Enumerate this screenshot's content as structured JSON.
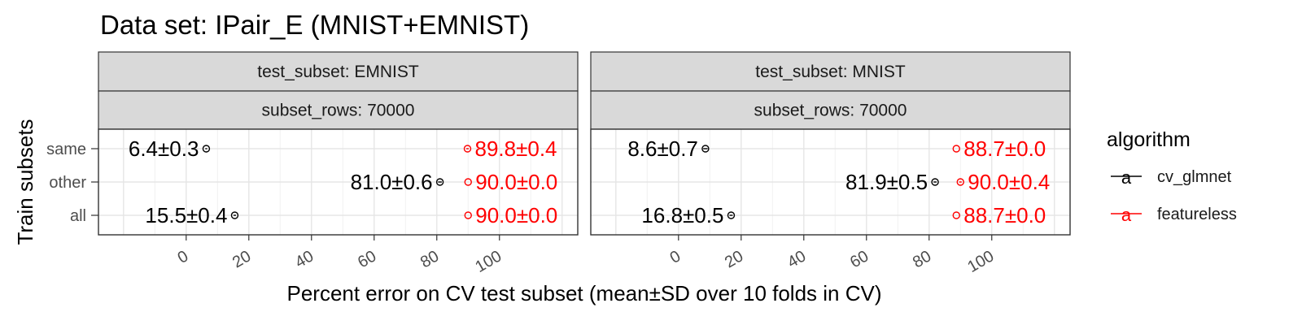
{
  "chart_data": {
    "type": "scatter",
    "title": "Data set: IPair_E (MNIST+EMNIST)",
    "xlabel": "Percent error on CV test subset (mean±SD over 10 folds in CV)",
    "ylabel": "Train subsets",
    "xlim": [
      -28,
      125
    ],
    "xticks": [
      "0",
      "20",
      "40",
      "60",
      "80",
      "100"
    ],
    "y_categories": [
      "same",
      "other",
      "all"
    ],
    "grid": true,
    "legend": {
      "title": "algorithm",
      "position": "right",
      "items": [
        {
          "label": "cv_glmnet",
          "color": "#000000"
        },
        {
          "label": "featureless",
          "color": "#ff0000"
        }
      ]
    },
    "facets": [
      {
        "strip_top": "test_subset: EMNIST",
        "strip_bottom": "subset_rows: 70000",
        "points": [
          {
            "algorithm": "cv_glmnet",
            "subset": "same",
            "mean": 6.4,
            "sd": 0.3,
            "label": "6.4±0.3"
          },
          {
            "algorithm": "cv_glmnet",
            "subset": "other",
            "mean": 81.0,
            "sd": 0.6,
            "label": "81.0±0.6"
          },
          {
            "algorithm": "cv_glmnet",
            "subset": "all",
            "mean": 15.5,
            "sd": 0.4,
            "label": "15.5±0.4"
          },
          {
            "algorithm": "featureless",
            "subset": "same",
            "mean": 89.8,
            "sd": 0.4,
            "label": "89.8±0.4"
          },
          {
            "algorithm": "featureless",
            "subset": "other",
            "mean": 90.0,
            "sd": 0.0,
            "label": "90.0±0.0"
          },
          {
            "algorithm": "featureless",
            "subset": "all",
            "mean": 90.0,
            "sd": 0.0,
            "label": "90.0±0.0"
          }
        ]
      },
      {
        "strip_top": "test_subset: MNIST",
        "strip_bottom": "subset_rows: 70000",
        "points": [
          {
            "algorithm": "cv_glmnet",
            "subset": "same",
            "mean": 8.6,
            "sd": 0.7,
            "label": "8.6±0.7"
          },
          {
            "algorithm": "cv_glmnet",
            "subset": "other",
            "mean": 81.9,
            "sd": 0.5,
            "label": "81.9±0.5"
          },
          {
            "algorithm": "cv_glmnet",
            "subset": "all",
            "mean": 16.8,
            "sd": 0.5,
            "label": "16.8±0.5"
          },
          {
            "algorithm": "featureless",
            "subset": "same",
            "mean": 88.7,
            "sd": 0.0,
            "label": "88.7±0.0"
          },
          {
            "algorithm": "featureless",
            "subset": "other",
            "mean": 90.0,
            "sd": 0.4,
            "label": "90.0±0.4"
          },
          {
            "algorithm": "featureless",
            "subset": "all",
            "mean": 88.7,
            "sd": 0.0,
            "label": "88.7±0.0"
          }
        ]
      }
    ]
  }
}
